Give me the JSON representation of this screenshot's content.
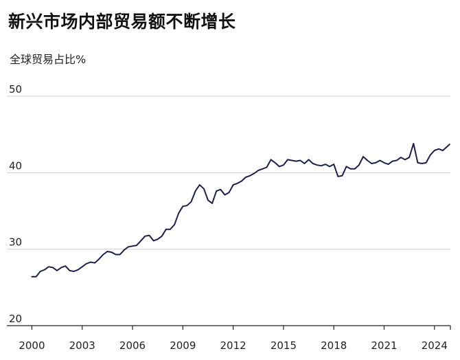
{
  "chart_data": {
    "type": "line",
    "title": "新兴市场内部贸易额不断增长",
    "subtitle": "全球贸易占比%",
    "xlabel": "",
    "ylabel": "",
    "ylim": [
      20,
      50
    ],
    "xlim": [
      1999.9,
      2024.95
    ],
    "grid": true,
    "y_ticks": [
      "20",
      "30",
      "40",
      "50"
    ],
    "x_ticks": [
      "2000",
      "2003",
      "2006",
      "2009",
      "2012",
      "2015",
      "2018",
      "2021",
      "2024"
    ],
    "series": [
      {
        "color": "#1b1f4a",
        "x": [
          2000.0,
          2000.25,
          2000.5,
          2000.75,
          2001.0,
          2001.25,
          2001.5,
          2001.75,
          2002.0,
          2002.25,
          2002.5,
          2002.75,
          2003.0,
          2003.25,
          2003.5,
          2003.75,
          2004.0,
          2004.25,
          2004.5,
          2004.75,
          2005.0,
          2005.25,
          2005.5,
          2005.75,
          2006.0,
          2006.25,
          2006.5,
          2006.75,
          2007.0,
          2007.25,
          2007.5,
          2007.75,
          2008.0,
          2008.25,
          2008.5,
          2008.75,
          2009.0,
          2009.25,
          2009.5,
          2009.75,
          2010.0,
          2010.25,
          2010.5,
          2010.75,
          2011.0,
          2011.25,
          2011.5,
          2011.75,
          2012.0,
          2012.25,
          2012.5,
          2012.75,
          2013.0,
          2013.25,
          2013.5,
          2013.75,
          2014.0,
          2014.25,
          2014.5,
          2014.75,
          2015.0,
          2015.25,
          2015.5,
          2015.75,
          2016.0,
          2016.25,
          2016.5,
          2016.75,
          2017.0,
          2017.25,
          2017.5,
          2017.75,
          2018.0,
          2018.25,
          2018.5,
          2018.75,
          2019.0,
          2019.25,
          2019.5,
          2019.75,
          2020.0,
          2020.25,
          2020.5,
          2020.75,
          2021.0,
          2021.25,
          2021.5,
          2021.75,
          2022.0,
          2022.25,
          2022.5,
          2022.75,
          2023.0,
          2023.25,
          2023.5,
          2023.75,
          2024.0,
          2024.25,
          2024.5,
          2024.75,
          2024.9
        ],
        "values": [
          26.4,
          26.4,
          27.1,
          27.3,
          27.7,
          27.6,
          27.2,
          27.6,
          27.8,
          27.2,
          27.1,
          27.3,
          27.7,
          28.1,
          28.3,
          28.2,
          28.7,
          29.3,
          29.7,
          29.6,
          29.3,
          29.3,
          29.9,
          30.3,
          30.4,
          30.5,
          31.1,
          31.7,
          31.8,
          31.1,
          31.3,
          31.7,
          32.6,
          32.6,
          33.2,
          34.7,
          35.6,
          35.7,
          36.2,
          37.6,
          38.4,
          37.9,
          36.4,
          36.0,
          37.6,
          37.8,
          37.1,
          37.4,
          38.4,
          38.6,
          38.9,
          39.4,
          39.6,
          39.9,
          40.3,
          40.5,
          40.7,
          41.7,
          41.3,
          40.8,
          41.0,
          41.7,
          41.6,
          41.5,
          41.6,
          41.2,
          41.7,
          41.2,
          41.0,
          40.9,
          41.1,
          40.8,
          41.1,
          39.5,
          39.6,
          40.8,
          40.5,
          40.5,
          41.0,
          42.1,
          41.6,
          41.2,
          41.3,
          41.6,
          41.3,
          41.1,
          41.5,
          41.6,
          42.0,
          41.7,
          42.0,
          43.8,
          41.3,
          41.2,
          41.3,
          42.3,
          42.9,
          43.1,
          42.9,
          43.4,
          43.7
        ]
      }
    ]
  }
}
